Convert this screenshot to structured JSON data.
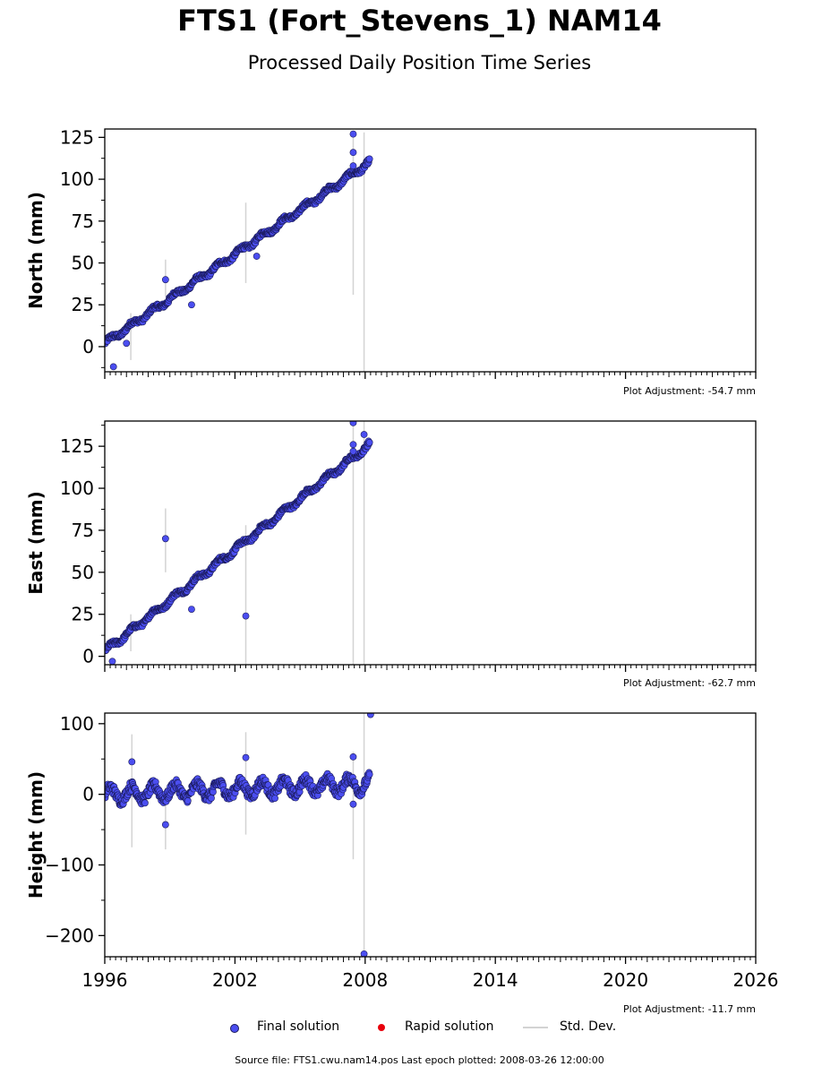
{
  "title": "FTS1 (Fort_Stevens_1) NAM14",
  "subtitle": "Processed Daily Position Time Series",
  "legend": {
    "final": "Final solution",
    "rapid": "Rapid solution",
    "std": "Std. Dev."
  },
  "source_line": "Source file: FTS1.cwu.nam14.pos  Last epoch plotted: 2008-03-26 12:00:00",
  "colors": {
    "final": "#4b4ef0",
    "final_edge": "#1a1a5a",
    "rapid": "#e8000b",
    "std": "#d3d3d3"
  },
  "chart_data": [
    {
      "type": "scatter",
      "ylabel": "North (mm)",
      "adjustment": "Plot Adjustment: -54.7 mm",
      "xlim": [
        1996,
        2026
      ],
      "ylim": [
        -15,
        130
      ],
      "yticks": [
        0,
        25,
        50,
        75,
        100,
        125
      ],
      "xticks": [
        1996,
        2002,
        2008,
        2014,
        2020,
        2026
      ],
      "trend": {
        "x0": 1996.0,
        "y0": 2,
        "x1": 2008.2,
        "y1": 110
      },
      "series": [
        {
          "name": "Final solution",
          "outliers": [
            [
              1996.4,
              -12
            ],
            [
              1998.8,
              40
            ],
            [
              2000.0,
              25
            ],
            [
              2003.0,
              54
            ],
            [
              2007.45,
              127
            ],
            [
              2007.45,
              116
            ],
            [
              2007.45,
              108
            ],
            [
              1997.0,
              2
            ]
          ],
          "error_bars": [
            [
              1998.8,
              30,
              52
            ],
            [
              2002.5,
              38,
              86
            ],
            [
              2007.45,
              31,
              128
            ],
            [
              2007.95,
              -18,
              128
            ],
            [
              1997.2,
              -8,
              20
            ]
          ]
        }
      ]
    },
    {
      "type": "scatter",
      "ylabel": "East (mm)",
      "adjustment": "Plot Adjustment: -62.7 mm",
      "xlim": [
        1996,
        2026
      ],
      "ylim": [
        -5,
        140
      ],
      "yticks": [
        0,
        25,
        50,
        75,
        100,
        125
      ],
      "xticks": [
        1996,
        2002,
        2008,
        2014,
        2020,
        2026
      ],
      "trend": {
        "x0": 1996.0,
        "y0": 3,
        "x1": 2008.2,
        "y1": 126
      },
      "series": [
        {
          "name": "Final solution",
          "outliers": [
            [
              1996.35,
              -3
            ],
            [
              1998.8,
              70
            ],
            [
              2000.0,
              28
            ],
            [
              2002.5,
              24
            ],
            [
              2007.45,
              139
            ],
            [
              2007.45,
              126
            ],
            [
              2007.45,
              122
            ],
            [
              2007.95,
              132
            ]
          ],
          "error_bars": [
            [
              1998.8,
              50,
              88
            ],
            [
              2002.5,
              -5,
              78
            ],
            [
              2007.45,
              -5,
              140
            ],
            [
              2007.95,
              -5,
              140
            ],
            [
              1997.2,
              3,
              25
            ]
          ]
        }
      ]
    },
    {
      "type": "scatter",
      "ylabel": "Height (mm)",
      "adjustment": "Plot Adjustment: -11.7 mm",
      "xlim": [
        1996,
        2026
      ],
      "ylim": [
        -230,
        115
      ],
      "yticks": [
        -200,
        -100,
        0,
        100
      ],
      "xticks": [
        1996,
        2002,
        2008,
        2014,
        2020,
        2026
      ],
      "trend": {
        "x0": 1996.0,
        "y0": 0,
        "x1": 2008.2,
        "y1": 15
      },
      "series": [
        {
          "name": "Final solution",
          "outliers": [
            [
              1997.25,
              46
            ],
            [
              1998.8,
              -43
            ],
            [
              2002.5,
              52
            ],
            [
              2007.45,
              -14
            ],
            [
              2007.45,
              53
            ],
            [
              2008.25,
              113
            ],
            [
              2007.95,
              -226
            ]
          ],
          "error_bars": [
            [
              1997.25,
              -75,
              85
            ],
            [
              1998.8,
              -78,
              10
            ],
            [
              2002.5,
              -57,
              88
            ],
            [
              2007.45,
              -92,
              60
            ],
            [
              2007.95,
              -230,
              115
            ]
          ]
        }
      ]
    }
  ]
}
